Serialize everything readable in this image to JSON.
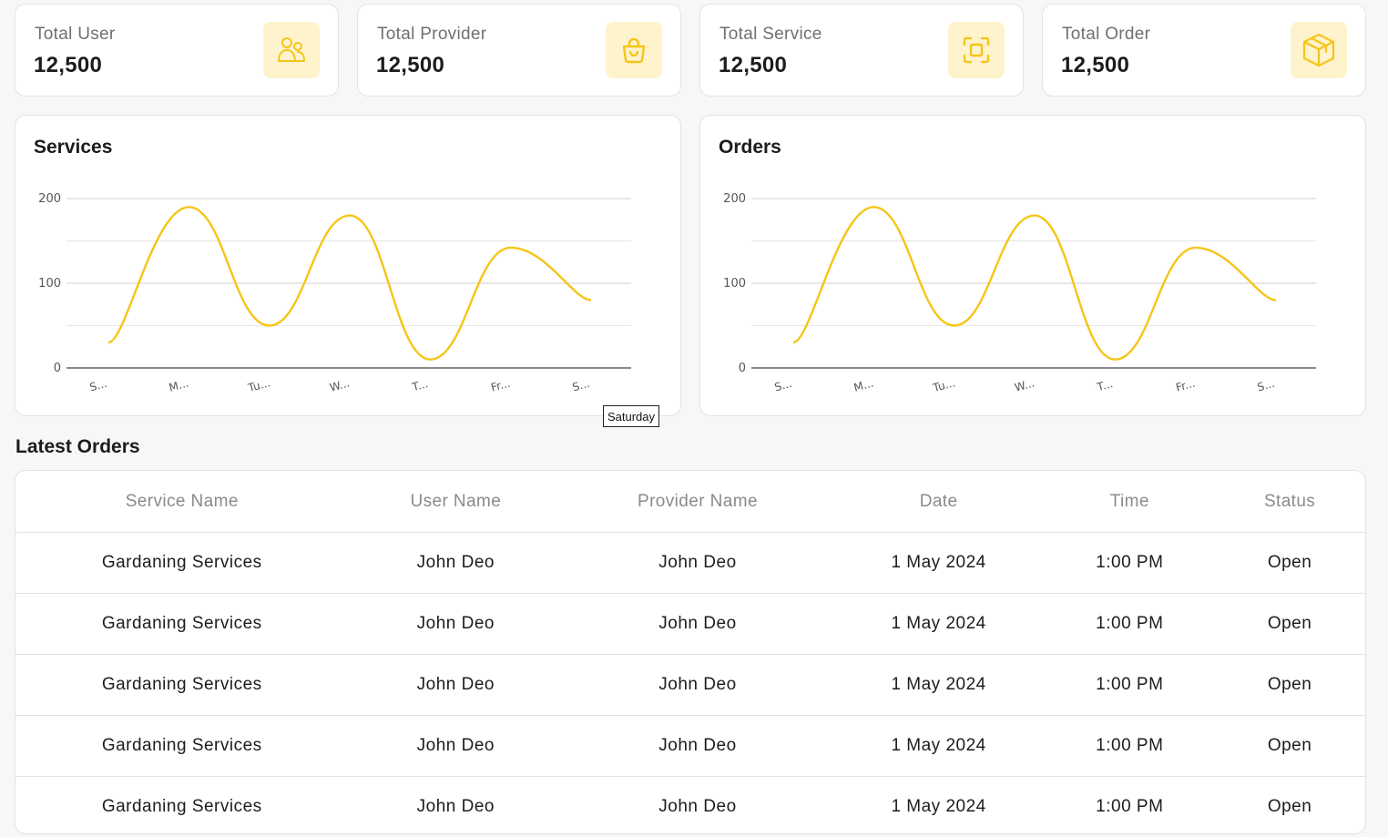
{
  "stats": [
    {
      "label": "Total User",
      "value": "12,500",
      "icon": "users-icon"
    },
    {
      "label": "Total Provider",
      "value": "12,500",
      "icon": "shopping-bag-icon"
    },
    {
      "label": "Total Service",
      "value": "12,500",
      "icon": "scan-frame-icon"
    },
    {
      "label": "Total Order",
      "value": "12,500",
      "icon": "box-icon"
    }
  ],
  "accent_color": "#f5c518",
  "icon_bg_color": "#fff3cd",
  "chart_data": [
    {
      "type": "line",
      "title": "Services",
      "categories": [
        "S...",
        "M...",
        "Tu...",
        "W...",
        "T...",
        "Fr...",
        "S..."
      ],
      "values": [
        30,
        190,
        50,
        180,
        10,
        142,
        80
      ],
      "y_ticks": [
        "0",
        "100",
        "200"
      ],
      "ylim": [
        0,
        200
      ],
      "grid": true,
      "line_color": "#f5c518"
    },
    {
      "type": "line",
      "title": "Orders",
      "categories": [
        "S...",
        "M...",
        "Tu...",
        "W...",
        "T...",
        "Fr...",
        "S..."
      ],
      "values": [
        30,
        190,
        50,
        180,
        10,
        142,
        80
      ],
      "y_ticks": [
        "0",
        "100",
        "200"
      ],
      "ylim": [
        0,
        200
      ],
      "grid": true,
      "line_color": "#f5c518"
    }
  ],
  "tooltip": {
    "text": "Saturday"
  },
  "latest_orders": {
    "title": "Latest Orders",
    "columns": [
      "Service Name",
      "User Name",
      "Provider Name",
      "Date",
      "Time",
      "Status"
    ],
    "rows": [
      [
        "Gardaning Services",
        "John Deo",
        "John Deo",
        "1 May 2024",
        "1:00 PM",
        "Open"
      ],
      [
        "Gardaning Services",
        "John Deo",
        "John Deo",
        "1 May 2024",
        "1:00 PM",
        "Open"
      ],
      [
        "Gardaning Services",
        "John Deo",
        "John Deo",
        "1 May 2024",
        "1:00 PM",
        "Open"
      ],
      [
        "Gardaning Services",
        "John Deo",
        "John Deo",
        "1 May 2024",
        "1:00 PM",
        "Open"
      ],
      [
        "Gardaning Services",
        "John Deo",
        "John Deo",
        "1 May 2024",
        "1:00 PM",
        "Open"
      ]
    ]
  }
}
